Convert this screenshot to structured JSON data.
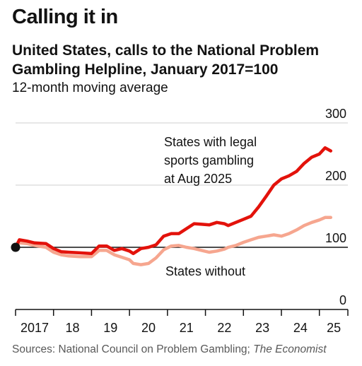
{
  "header": {
    "title": "Calling it in",
    "subtitle_line1": "United States, calls to the National Problem",
    "subtitle_line2": "Gambling Helpline, January 2017=100",
    "subtitle2": "12-month moving average"
  },
  "footer": {
    "source_prefix": "Sources: National Council on Problem Gambling; ",
    "source_italic": "The Economist"
  },
  "colors": {
    "legal": "#e3120b",
    "without": "#f6a68f",
    "axis": "#121212",
    "grid": "#cfcfcf"
  },
  "chart_data": {
    "type": "line",
    "title": "Calling it in",
    "subtitle": "United States, calls to the National Problem Gambling Helpline, January 2017=100",
    "ylabel": "12-month moving average",
    "ylim": [
      0,
      300
    ],
    "yticks": [
      0,
      100,
      200,
      300
    ],
    "y_tick_labels": [
      "0",
      "100",
      "200",
      "300"
    ],
    "xlim": [
      2017,
      2025.75
    ],
    "xticks": [
      2017,
      2018,
      2019,
      2020,
      2021,
      2022,
      2023,
      2024,
      2025
    ],
    "x_tick_labels": [
      "2017",
      "18",
      "19",
      "20",
      "21",
      "22",
      "23",
      "24",
      "25"
    ],
    "grid": true,
    "series": [
      {
        "name": "States with legal sports gambling at Aug 2025",
        "label_lines": [
          "States with legal",
          "sports gambling",
          "at Aug 2025"
        ],
        "color": "#e3120b",
        "x": [
          2017.0,
          2017.1,
          2017.3,
          2017.5,
          2017.8,
          2018.0,
          2018.2,
          2018.4,
          2018.7,
          2019.0,
          2019.2,
          2019.4,
          2019.6,
          2019.8,
          2020.0,
          2020.1,
          2020.3,
          2020.5,
          2020.7,
          2020.9,
          2021.1,
          2021.3,
          2021.5,
          2021.7,
          2021.9,
          2022.1,
          2022.3,
          2022.5,
          2022.6,
          2022.8,
          2023.0,
          2023.2,
          2023.4,
          2023.6,
          2023.8,
          2024.0,
          2024.2,
          2024.4,
          2024.6,
          2024.8,
          2025.0,
          2025.15,
          2025.3
        ],
        "values": [
          100,
          112,
          110,
          107,
          106,
          98,
          93,
          92,
          91,
          90,
          102,
          102,
          95,
          98,
          94,
          90,
          98,
          100,
          104,
          118,
          122,
          122,
          130,
          138,
          137,
          136,
          140,
          138,
          135,
          140,
          145,
          150,
          165,
          182,
          200,
          210,
          215,
          222,
          235,
          245,
          250,
          260,
          255
        ]
      },
      {
        "name": "States without",
        "label_lines": [
          "States without"
        ],
        "color": "#f6a68f",
        "x": [
          2017.0,
          2017.1,
          2017.3,
          2017.5,
          2017.8,
          2018.0,
          2018.2,
          2018.4,
          2018.7,
          2019.0,
          2019.2,
          2019.4,
          2019.6,
          2019.8,
          2020.0,
          2020.1,
          2020.3,
          2020.5,
          2020.7,
          2020.9,
          2021.1,
          2021.3,
          2021.5,
          2021.7,
          2021.9,
          2022.1,
          2022.3,
          2022.5,
          2022.6,
          2022.8,
          2023.0,
          2023.2,
          2023.4,
          2023.6,
          2023.8,
          2024.0,
          2024.2,
          2024.4,
          2024.6,
          2024.8,
          2025.0,
          2025.15,
          2025.3
        ],
        "values": [
          100,
          107,
          106,
          103,
          100,
          92,
          88,
          86,
          85,
          85,
          95,
          95,
          88,
          84,
          80,
          74,
          72,
          74,
          83,
          96,
          102,
          103,
          100,
          98,
          95,
          92,
          94,
          97,
          100,
          103,
          108,
          112,
          116,
          118,
          120,
          118,
          122,
          128,
          135,
          140,
          144,
          148,
          148
        ]
      }
    ],
    "base_point": {
      "x": 2017.0,
      "y": 100
    }
  }
}
